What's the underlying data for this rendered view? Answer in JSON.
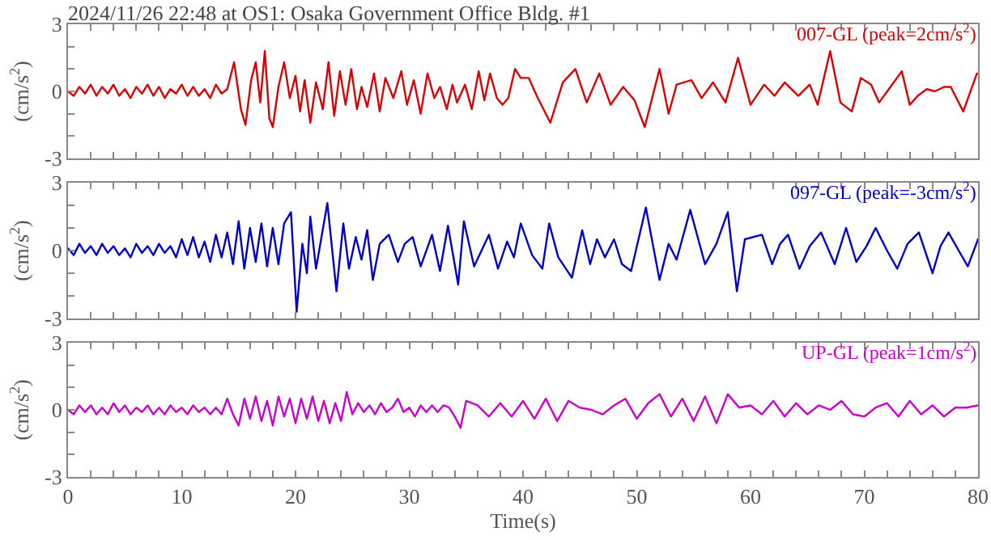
{
  "chart_data": [
    {
      "type": "line",
      "title": "2024/11/26 22:48 at OS1: Osaka Government Office Bldg. #1",
      "ylabel": "(cm/s$^{2}$)",
      "xlim": [
        0,
        80
      ],
      "ylim": [
        -3,
        3
      ],
      "tick_labels": "y",
      "xticks": [
        0,
        {
          "value": 2,
          "label": null
        },
        {
          "value": 4,
          "label": null
        },
        {
          "value": 6,
          "label": null
        },
        {
          "value": 8,
          "label": null
        },
        10,
        {
          "value": 12,
          "label": null
        },
        {
          "value": 14,
          "label": null
        },
        {
          "value": 16,
          "label": null
        },
        {
          "value": 18,
          "label": null
        },
        20,
        {
          "value": 22,
          "label": null
        },
        {
          "value": 24,
          "label": null
        },
        {
          "value": 26,
          "label": null
        },
        {
          "value": 28,
          "label": null
        },
        30,
        {
          "value": 32,
          "label": null
        },
        {
          "value": 34,
          "label": null
        },
        {
          "value": 36,
          "label": null
        },
        {
          "value": 38,
          "label": null
        },
        40,
        {
          "value": 42,
          "label": null
        },
        {
          "value": 44,
          "label": null
        },
        {
          "value": 46,
          "label": null
        },
        {
          "value": 48,
          "label": null
        },
        50,
        {
          "value": 52,
          "label": null
        },
        {
          "value": 54,
          "label": null
        },
        {
          "value": 56,
          "label": null
        },
        {
          "value": 58,
          "label": null
        },
        60,
        {
          "value": 62,
          "label": null
        },
        {
          "value": 64,
          "label": null
        },
        {
          "value": 66,
          "label": null
        },
        {
          "value": 68,
          "label": null
        },
        70,
        {
          "value": 72,
          "label": null
        },
        {
          "value": 74,
          "label": null
        },
        {
          "value": 76,
          "label": null
        },
        {
          "value": 78,
          "label": null
        },
        80
      ],
      "yticks": [
        -3,
        {
          "value": -2,
          "label": null
        },
        {
          "value": -1,
          "label": null
        },
        0,
        {
          "value": 1,
          "label": null
        },
        {
          "value": 2,
          "label": null
        },
        3
      ],
      "series": [
        {
          "name": "007-GL (peak=2cm/s$^{2}$)",
          "color": "#dd0000",
          "x": [
            0,
            0.5,
            1,
            1.5,
            2,
            2.5,
            3,
            3.5,
            4,
            4.5,
            5,
            5.5,
            6,
            6.5,
            7,
            7.5,
            8,
            8.5,
            9,
            9.5,
            10,
            10.5,
            11,
            11.5,
            12,
            12.5,
            13,
            13.5,
            14,
            14.6,
            15.2,
            15.6,
            16.1,
            16.5,
            16.9,
            17.3,
            17.7,
            18.0,
            18.5,
            19.0,
            19.5,
            20.0,
            20.4,
            20.8,
            21.3,
            21.8,
            22.4,
            22.9,
            23.4,
            23.9,
            24.4,
            24.9,
            25.4,
            25.8,
            26.3,
            26.9,
            27.4,
            27.9,
            28.6,
            29.3,
            29.8,
            30.4,
            31.0,
            31.6,
            32.2,
            32.7,
            33.3,
            33.8,
            34.2,
            34.9,
            35.5,
            36.1,
            36.6,
            37.1,
            37.7,
            38.2,
            38.7,
            39.3,
            39.8,
            40.5,
            41.3,
            42.4,
            43.5,
            44.6,
            45.6,
            46.7,
            47.7,
            48.8,
            49.8,
            50.7,
            52.0,
            52.8,
            53.5,
            54.8,
            55.7,
            56.7,
            57.8,
            58.9,
            60.0,
            61.2,
            62.1,
            63.0,
            64.2,
            65.2,
            65.9,
            67.0,
            67.9,
            68.9,
            69.7,
            70.6,
            71.3,
            72.3,
            73.3,
            74.0,
            74.7,
            75.5,
            76.2,
            77.0,
            77.6,
            78.7,
            79.9
          ],
          "values": [
            0,
            -0.2,
            0.2,
            -0.1,
            0.3,
            -0.2,
            0.2,
            -0.1,
            0.3,
            -0.2,
            0.1,
            -0.3,
            0.2,
            -0.1,
            0.3,
            -0.2,
            0.2,
            -0.3,
            0.1,
            -0.1,
            0.3,
            -0.2,
            0.2,
            -0.2,
            0.1,
            -0.3,
            0.3,
            -0.1,
            0.1,
            1.3,
            -0.8,
            -1.5,
            0.5,
            1.3,
            -0.5,
            1.8,
            -1.2,
            -1.6,
            0.2,
            1.3,
            -0.3,
            0.7,
            -0.9,
            0.5,
            -1.4,
            0.4,
            -0.8,
            1.3,
            -1.1,
            0.9,
            -0.6,
            1.0,
            -0.8,
            0.2,
            -0.7,
            0.8,
            -0.9,
            0.6,
            -0.3,
            0.9,
            -0.6,
            0.5,
            -1.0,
            0.8,
            -0.3,
            0.2,
            -0.8,
            0.3,
            -0.5,
            0.3,
            -0.8,
            0.9,
            -0.4,
            0.8,
            -0.3,
            -0.6,
            -0.3,
            1.0,
            0.6,
            0.6,
            -0.3,
            -1.4,
            0.4,
            1.0,
            -0.5,
            0.8,
            -0.6,
            0.2,
            -0.4,
            -1.6,
            1.0,
            -1.0,
            0.3,
            0.5,
            -0.3,
            0.4,
            -0.5,
            1.5,
            -0.6,
            0.3,
            -0.2,
            0.4,
            -0.2,
            0.3,
            -0.6,
            1.8,
            -0.5,
            -0.9,
            0.6,
            0.3,
            -0.5,
            0.2,
            0.9,
            -0.6,
            -0.2,
            0.1,
            0.0,
            0.2,
            0.2,
            -0.9,
            0.8
          ]
        }
      ]
    },
    {
      "type": "line",
      "ylabel": "(cm/s$^{2}$)",
      "xlim": [
        0,
        80
      ],
      "ylim": [
        -3,
        3
      ],
      "tick_labels": "y",
      "xticks": [
        0,
        {
          "value": 2,
          "label": null
        },
        {
          "value": 4,
          "label": null
        },
        {
          "value": 6,
          "label": null
        },
        {
          "value": 8,
          "label": null
        },
        10,
        {
          "value": 12,
          "label": null
        },
        {
          "value": 14,
          "label": null
        },
        {
          "value": 16,
          "label": null
        },
        {
          "value": 18,
          "label": null
        },
        20,
        {
          "value": 22,
          "label": null
        },
        {
          "value": 24,
          "label": null
        },
        {
          "value": 26,
          "label": null
        },
        {
          "value": 28,
          "label": null
        },
        30,
        {
          "value": 32,
          "label": null
        },
        {
          "value": 34,
          "label": null
        },
        {
          "value": 36,
          "label": null
        },
        {
          "value": 38,
          "label": null
        },
        40,
        {
          "value": 42,
          "label": null
        },
        {
          "value": 44,
          "label": null
        },
        {
          "value": 46,
          "label": null
        },
        {
          "value": 48,
          "label": null
        },
        50,
        {
          "value": 52,
          "label": null
        },
        {
          "value": 54,
          "label": null
        },
        {
          "value": 56,
          "label": null
        },
        {
          "value": 58,
          "label": null
        },
        60,
        {
          "value": 62,
          "label": null
        },
        {
          "value": 64,
          "label": null
        },
        {
          "value": 66,
          "label": null
        },
        {
          "value": 68,
          "label": null
        },
        70,
        {
          "value": 72,
          "label": null
        },
        {
          "value": 74,
          "label": null
        },
        {
          "value": 76,
          "label": null
        },
        {
          "value": 78,
          "label": null
        },
        80
      ],
      "yticks": [
        -3,
        {
          "value": -2,
          "label": null
        },
        {
          "value": -1,
          "label": null
        },
        0,
        {
          "value": 1,
          "label": null
        },
        {
          "value": 2,
          "label": null
        },
        3
      ],
      "series": [
        {
          "name": "097-GL (peak=-3cm/s$^{2}$)",
          "color": "#0000cc",
          "x": [
            0,
            0.5,
            1,
            1.5,
            2,
            2.5,
            3,
            3.5,
            4,
            4.5,
            5,
            5.5,
            6,
            6.5,
            7,
            7.5,
            8,
            8.5,
            9,
            9.5,
            10,
            10.5,
            11,
            11.5,
            12,
            12.5,
            13,
            13.5,
            14,
            14.5,
            15,
            15.5,
            16,
            16.5,
            17,
            17.5,
            18,
            18.5,
            19,
            19.6,
            20.1,
            20.6,
            21.0,
            21.3,
            21.8,
            22.8,
            23.6,
            24.2,
            24.7,
            25.3,
            25.8,
            26.3,
            26.8,
            27.4,
            28.2,
            29.0,
            29.6,
            30.3,
            31.0,
            32.0,
            32.7,
            33.4,
            34.3,
            34.8,
            35.7,
            37.0,
            37.8,
            38.6,
            39.2,
            39.8,
            40.8,
            41.7,
            42.3,
            43.1,
            44.3,
            45.2,
            45.9,
            46.5,
            47.2,
            48.0,
            48.7,
            49.5,
            50.8,
            52.0,
            52.8,
            53.5,
            54.7,
            56.0,
            57.0,
            58.0,
            58.8,
            59.5,
            61.0,
            61.9,
            62.6,
            63.3,
            64.3,
            65.2,
            66.2,
            67.4,
            68.4,
            69.3,
            70.2,
            71.0,
            72.0,
            72.9,
            73.8,
            74.8,
            76.0,
            76.7,
            77.4,
            78.3,
            79.1,
            80.0
          ],
          "values": [
            0.1,
            -0.2,
            0.3,
            -0.1,
            0.2,
            -0.2,
            0.3,
            -0.1,
            0.2,
            -0.2,
            0.1,
            -0.3,
            0.3,
            -0.1,
            0.2,
            -0.2,
            0.3,
            -0.1,
            0.2,
            -0.3,
            0.5,
            -0.2,
            0.6,
            -0.3,
            0.4,
            -0.5,
            0.7,
            -0.3,
            0.8,
            -0.6,
            1.3,
            -0.8,
            1.0,
            -0.5,
            1.2,
            -0.7,
            1.0,
            -0.6,
            1.2,
            1.7,
            -2.7,
            0.3,
            -1.0,
            1.5,
            -0.8,
            2.1,
            -1.8,
            1.2,
            -0.8,
            0.6,
            -0.4,
            0.9,
            -1.3,
            0.3,
            0.7,
            -0.5,
            0.3,
            0.6,
            -0.7,
            0.7,
            -0.9,
            1.1,
            -1.5,
            1.3,
            -0.7,
            0.7,
            -0.8,
            0.4,
            -0.3,
            1.2,
            -0.2,
            -0.8,
            1.2,
            -0.3,
            -1.2,
            0.9,
            -0.6,
            0.5,
            -0.3,
            0.5,
            -0.6,
            -0.9,
            1.9,
            -1.3,
            0.3,
            -0.4,
            1.8,
            -0.6,
            0.3,
            1.7,
            -1.8,
            0.5,
            0.7,
            -0.6,
            0.3,
            0.7,
            -0.8,
            0.2,
            0.8,
            -0.6,
            1.0,
            -0.5,
            0.2,
            1.0,
            0.0,
            -0.8,
            0.3,
            0.8,
            -1.0,
            0.2,
            0.8,
            0.0,
            -0.7,
            0.5
          ]
        }
      ]
    },
    {
      "type": "line",
      "xlabel": "Time(s)",
      "ylabel": "(cm/s$^{2}$)",
      "xlim": [
        0,
        80
      ],
      "ylim": [
        -3,
        3
      ],
      "xticks": [
        0,
        {
          "value": 2,
          "label": null
        },
        {
          "value": 4,
          "label": null
        },
        {
          "value": 6,
          "label": null
        },
        {
          "value": 8,
          "label": null
        },
        10,
        {
          "value": 12,
          "label": null
        },
        {
          "value": 14,
          "label": null
        },
        {
          "value": 16,
          "label": null
        },
        {
          "value": 18,
          "label": null
        },
        20,
        {
          "value": 22,
          "label": null
        },
        {
          "value": 24,
          "label": null
        },
        {
          "value": 26,
          "label": null
        },
        {
          "value": 28,
          "label": null
        },
        30,
        {
          "value": 32,
          "label": null
        },
        {
          "value": 34,
          "label": null
        },
        {
          "value": 36,
          "label": null
        },
        {
          "value": 38,
          "label": null
        },
        40,
        {
          "value": 42,
          "label": null
        },
        {
          "value": 44,
          "label": null
        },
        {
          "value": 46,
          "label": null
        },
        {
          "value": 48,
          "label": null
        },
        50,
        {
          "value": 52,
          "label": null
        },
        {
          "value": 54,
          "label": null
        },
        {
          "value": 56,
          "label": null
        },
        {
          "value": 58,
          "label": null
        },
        60,
        {
          "value": 62,
          "label": null
        },
        {
          "value": 64,
          "label": null
        },
        {
          "value": 66,
          "label": null
        },
        {
          "value": 68,
          "label": null
        },
        70,
        {
          "value": 72,
          "label": null
        },
        {
          "value": 74,
          "label": null
        },
        {
          "value": 76,
          "label": null
        },
        {
          "value": 78,
          "label": null
        },
        80
      ],
      "yticks": [
        -3,
        {
          "value": -2,
          "label": null
        },
        {
          "value": -1,
          "label": null
        },
        0,
        {
          "value": 1,
          "label": null
        },
        {
          "value": 2,
          "label": null
        },
        3
      ],
      "series": [
        {
          "name": "UP-GL (peak=1cm/s$^{2}$)",
          "color": "#cc00cc",
          "x": [
            0,
            0.5,
            1,
            1.5,
            2,
            2.5,
            3,
            3.5,
            4,
            4.5,
            5,
            5.5,
            6,
            6.5,
            7,
            7.5,
            8,
            8.5,
            9,
            9.5,
            10,
            10.5,
            11,
            11.5,
            12,
            12.5,
            13,
            13.5,
            14,
            14.5,
            15,
            15.5,
            16,
            16.5,
            17,
            17.5,
            18,
            18.5,
            19,
            19.5,
            20,
            20.5,
            21,
            21.5,
            22,
            22.5,
            23,
            23.5,
            24,
            24.5,
            25,
            25.5,
            26,
            26.5,
            27,
            27.5,
            28,
            28.5,
            29,
            29.5,
            30,
            30.5,
            31,
            31.5,
            32,
            32.5,
            33,
            33.5,
            34,
            34.5,
            35,
            36,
            37,
            38,
            39,
            40,
            41,
            42,
            43,
            44,
            45,
            46,
            47,
            48,
            49,
            50,
            51,
            52,
            53,
            54,
            55,
            56,
            57,
            58,
            59,
            60,
            61,
            62,
            63,
            64,
            65,
            66,
            67,
            68,
            69,
            70,
            71,
            72,
            73,
            74,
            75,
            76,
            77,
            78,
            79,
            80
          ],
          "values": [
            0,
            -0.2,
            0.2,
            -0.1,
            0.2,
            -0.2,
            0.1,
            -0.2,
            0.3,
            -0.1,
            0.2,
            -0.2,
            0.1,
            -0.1,
            0.2,
            -0.2,
            0.1,
            -0.2,
            0.2,
            -0.1,
            0.1,
            -0.2,
            0.2,
            -0.1,
            0.1,
            -0.2,
            0.1,
            -0.2,
            0.5,
            -0.2,
            -0.7,
            0.5,
            -0.4,
            0.6,
            -0.5,
            0.4,
            -0.7,
            0.6,
            -0.3,
            0.5,
            -0.6,
            0.5,
            -0.4,
            0.6,
            -0.5,
            0.4,
            -0.6,
            0.3,
            -0.5,
            0.8,
            -0.2,
            0.3,
            -0.1,
            0.2,
            -0.2,
            0.3,
            -0.1,
            0.1,
            0.5,
            -0.1,
            0.1,
            -0.3,
            0.2,
            -0.1,
            0.2,
            -0.1,
            0.2,
            0.1,
            -0.3,
            -0.8,
            0.4,
            0.2,
            -0.3,
            0.3,
            -0.3,
            0.4,
            -0.4,
            0.5,
            -0.5,
            0.4,
            0.1,
            0.0,
            -0.2,
            0.2,
            0.5,
            -0.4,
            0.3,
            0.7,
            -0.3,
            0.5,
            -0.5,
            0.6,
            -0.6,
            0.7,
            0.1,
            0.2,
            -0.2,
            0.4,
            -0.3,
            0.3,
            -0.2,
            0.2,
            0.0,
            0.4,
            -0.2,
            -0.3,
            0.1,
            0.3,
            -0.3,
            0.4,
            -0.2,
            0.2,
            -0.3,
            0.1,
            0.1,
            0.2
          ]
        }
      ]
    }
  ]
}
